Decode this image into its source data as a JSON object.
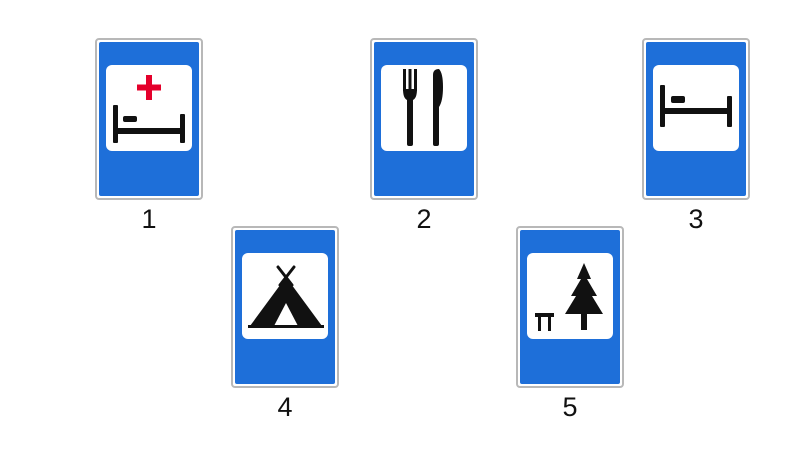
{
  "signs": [
    {
      "number": "1",
      "meaning": "hospital",
      "icons": [
        "red-cross-icon",
        "bed-icon"
      ]
    },
    {
      "number": "2",
      "meaning": "restaurant",
      "icons": [
        "fork-icon",
        "knife-icon"
      ]
    },
    {
      "number": "3",
      "meaning": "hotel",
      "icons": [
        "bed-icon"
      ]
    },
    {
      "number": "4",
      "meaning": "camping",
      "icons": [
        "tent-icon"
      ]
    },
    {
      "number": "5",
      "meaning": "rest area",
      "icons": [
        "bench-icon",
        "fir-tree-icon"
      ]
    }
  ],
  "colors": {
    "sign_blue": "#1e6fd9",
    "panel_white": "#ffffff",
    "symbol_black": "#111111",
    "cross_red": "#e4002b",
    "border_gray": "#b8b8b8"
  }
}
